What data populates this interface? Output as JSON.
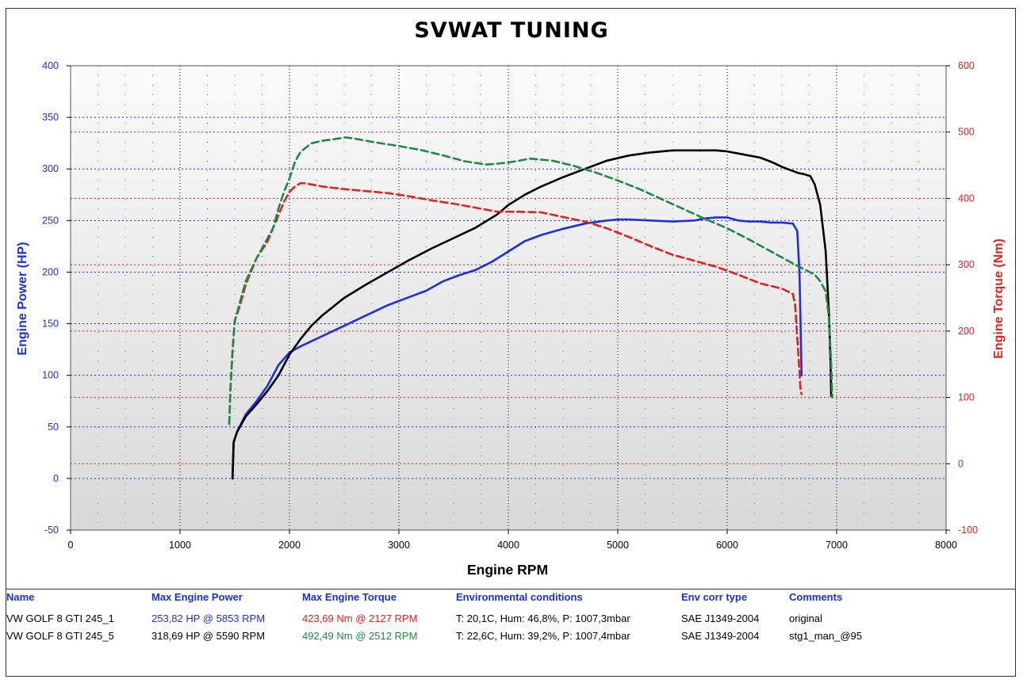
{
  "chart_data": {
    "type": "line",
    "title": "SVWAT TUNING",
    "xlabel": "Engine RPM",
    "ylabel_left": "Engine Power (HP)",
    "ylabel_right": "Engine Torque (Nm)",
    "xlim": [
      0,
      8000
    ],
    "ylim_left": [
      -50,
      400
    ],
    "ylim_right": [
      -100,
      600
    ],
    "x_ticks": [
      "0",
      "1000",
      "2000",
      "3000",
      "4000",
      "5000",
      "6000",
      "7000",
      "8000"
    ],
    "y_ticks_left": [
      "-50",
      "0",
      "50",
      "100",
      "150",
      "200",
      "250",
      "300",
      "350",
      "400"
    ],
    "y_ticks_right": [
      "-100",
      "0",
      "100",
      "200",
      "300",
      "400",
      "500",
      "600"
    ],
    "grid": true,
    "colors": {
      "power_original": "#1f2fe0",
      "power_stage1": "#000000",
      "torque_original": "#e52020",
      "torque_stage1": "#1f8a45",
      "left_axis": "#1f2fe0",
      "right_axis": "#e52020",
      "plot_bg_top": "#fbfbfb",
      "plot_bg_bottom": "#d9d9d9"
    },
    "series": [
      {
        "axis": "left",
        "dashed": false,
        "color_key": "power_original",
        "x": [
          1480,
          1490,
          1520,
          1600,
          1700,
          1800,
          1900,
          2000,
          2100,
          2200,
          2300,
          2400,
          2500,
          2700,
          2900,
          3100,
          3250,
          3400,
          3550,
          3700,
          3850,
          4000,
          4150,
          4300,
          4500,
          4700,
          4900,
          5000,
          5100,
          5300,
          5500,
          5700,
          5800,
          5900,
          6000,
          6100,
          6200,
          6300,
          6400,
          6500,
          6600,
          6640,
          6660,
          6670,
          6680
        ],
        "y": [
          0,
          35,
          45,
          62,
          75,
          90,
          110,
          122,
          128,
          133,
          138,
          143,
          148,
          158,
          168,
          176,
          182,
          191,
          197,
          202,
          210,
          220,
          230,
          236,
          242,
          247,
          250,
          251,
          251,
          250,
          249,
          250,
          252,
          253,
          253,
          250,
          249,
          249,
          248,
          248,
          247,
          240,
          200,
          150,
          100
        ]
      },
      {
        "axis": "left",
        "dashed": false,
        "color_key": "power_stage1",
        "x": [
          1480,
          1490,
          1520,
          1600,
          1700,
          1800,
          1900,
          1950,
          2000,
          2100,
          2200,
          2300,
          2500,
          2700,
          2900,
          3100,
          3300,
          3500,
          3700,
          3900,
          4000,
          4150,
          4300,
          4500,
          4700,
          4900,
          5100,
          5300,
          5500,
          5700,
          5900,
          6000,
          6100,
          6200,
          6300,
          6400,
          6500,
          6600,
          6650,
          6700,
          6760,
          6800,
          6850,
          6900,
          6930,
          6945,
          6950
        ],
        "y": [
          0,
          35,
          45,
          60,
          72,
          85,
          100,
          110,
          120,
          135,
          148,
          158,
          175,
          188,
          200,
          212,
          223,
          233,
          243,
          256,
          265,
          275,
          283,
          292,
          300,
          308,
          313,
          316,
          318,
          318,
          318,
          317,
          315,
          313,
          311,
          307,
          302,
          298,
          296,
          295,
          293,
          285,
          265,
          220,
          160,
          110,
          80
        ]
      },
      {
        "axis": "right",
        "dashed": true,
        "color_key": "torque_original",
        "x": [
          1450,
          1460,
          1480,
          1500,
          1550,
          1600,
          1700,
          1800,
          1900,
          1950,
          2000,
          2050,
          2100,
          2127,
          2200,
          2300,
          2500,
          2700,
          2900,
          3100,
          3300,
          3500,
          3700,
          3900,
          4100,
          4300,
          4500,
          4700,
          4900,
          5100,
          5300,
          5500,
          5700,
          5900,
          6100,
          6300,
          6500,
          6600,
          6620,
          6640,
          6660,
          6670,
          6680
        ],
        "y": [
          60,
          110,
          170,
          215,
          240,
          270,
          310,
          335,
          375,
          395,
          410,
          418,
          423,
          423,
          421,
          418,
          414,
          411,
          408,
          403,
          397,
          392,
          386,
          380,
          380,
          379,
          372,
          365,
          355,
          342,
          328,
          315,
          306,
          297,
          285,
          272,
          264,
          256,
          240,
          190,
          140,
          110,
          105
        ]
      },
      {
        "axis": "right",
        "dashed": true,
        "color_key": "torque_stage1",
        "x": [
          1450,
          1460,
          1480,
          1500,
          1550,
          1600,
          1700,
          1800,
          1850,
          1900,
          1950,
          2000,
          2050,
          2100,
          2200,
          2300,
          2400,
          2512,
          2600,
          2800,
          3000,
          3200,
          3400,
          3600,
          3800,
          4000,
          4200,
          4400,
          4600,
          4800,
          5000,
          5200,
          5400,
          5600,
          5800,
          6000,
          6200,
          6400,
          6600,
          6800,
          6850,
          6900,
          6930,
          6950,
          6960
        ],
        "y": [
          60,
          110,
          170,
          215,
          245,
          275,
          310,
          340,
          355,
          385,
          410,
          430,
          455,
          470,
          483,
          487,
          489,
          492,
          490,
          484,
          479,
          473,
          465,
          456,
          451,
          454,
          460,
          457,
          449,
          439,
          427,
          414,
          399,
          384,
          369,
          355,
          338,
          320,
          302,
          285,
          275,
          260,
          220,
          150,
          100
        ]
      }
    ]
  },
  "table": {
    "headers": [
      "Name",
      "Max Engine Power",
      "Max Engine Torque",
      "Environmental conditions",
      "Env corr type",
      "Comments"
    ],
    "rows": [
      [
        "VW GOLF 8 GTI 245_1",
        "253,82 HP @ 5853 RPM",
        "423,69 Nm @ 2127 RPM",
        "T: 20,1C, Hum: 46,8%, P: 1007,3mbar",
        "SAE J1349-2004",
        "original"
      ],
      [
        "VW GOLF 8 GTI 245_5",
        "318,69 HP @ 5590 RPM",
        "492,49 Nm @ 2512 RPM",
        "T: 22,6C, Hum: 39,2%, P: 1007,4mbar",
        "SAE J1349-2004",
        "stg1_man_@95"
      ]
    ],
    "row_colors": [
      [
        "#000000",
        "#1f2fe0",
        "#e52020",
        "#000000",
        "#000000",
        "#000000"
      ],
      [
        "#000000",
        "#000000",
        "#1f8a45",
        "#000000",
        "#000000",
        "#000000"
      ]
    ]
  }
}
